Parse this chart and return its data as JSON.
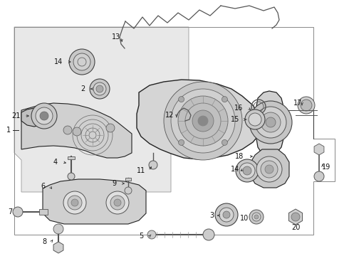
{
  "bg_color": "#ffffff",
  "fig_width": 4.9,
  "fig_height": 3.6,
  "dpi": 100,
  "panel_fill": "#e8e8e8",
  "panel_edge": "#aaaaaa",
  "line_color": "#444444",
  "dark_line": "#222222",
  "label_fontsize": 7.0,
  "label_color": "#111111",
  "arrow_color": "#333333",
  "component_fill": "#c8c8c8",
  "component_edge": "#333333"
}
